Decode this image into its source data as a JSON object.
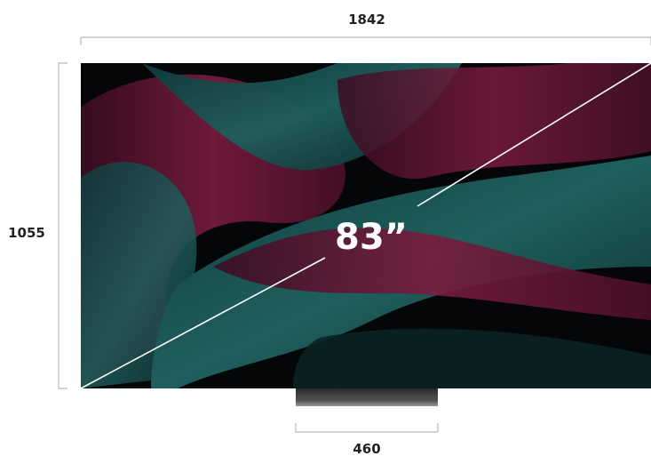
{
  "dimensions": {
    "width": "1842",
    "height": "1055",
    "diagonal": "83”",
    "stand_width": "460"
  }
}
